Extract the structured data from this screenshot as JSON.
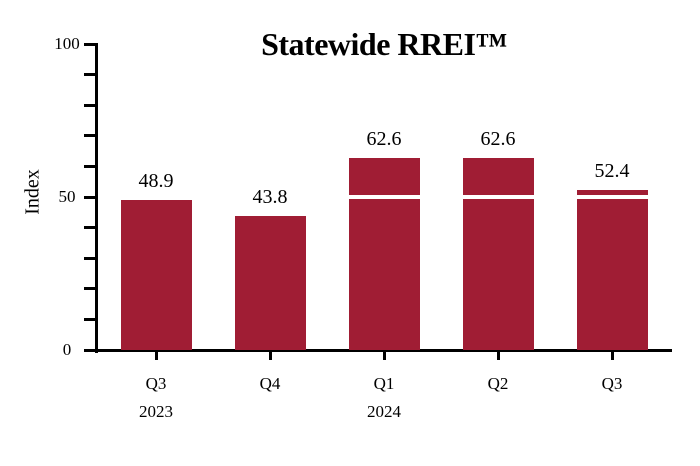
{
  "chart_data": {
    "type": "bar",
    "title": "Statewide RREI™",
    "ylabel": "Index",
    "xlabel": "",
    "categories": [
      "Q3",
      "Q4",
      "Q1",
      "Q2",
      "Q3"
    ],
    "year_groups": [
      {
        "label": "2023",
        "category_index": 0
      },
      {
        "label": "2024",
        "category_index": 2
      }
    ],
    "values": [
      48.9,
      43.8,
      62.6,
      62.6,
      52.4
    ],
    "value_labels": [
      "48.9",
      "43.8",
      "62.6",
      "62.6",
      "52.4"
    ],
    "ylim": [
      0,
      100
    ],
    "ytick_major": [
      0,
      50,
      100
    ],
    "ytick_major_labels": [
      "0",
      "50",
      "100"
    ],
    "ytick_minor_step": 10,
    "reference_line": {
      "value": 50,
      "color": "#ffffff"
    },
    "colors": {
      "bar": "#A01D34",
      "axis": "#000000",
      "text": "#000000",
      "background": "#ffffff"
    },
    "grid": false,
    "legend": null
  }
}
